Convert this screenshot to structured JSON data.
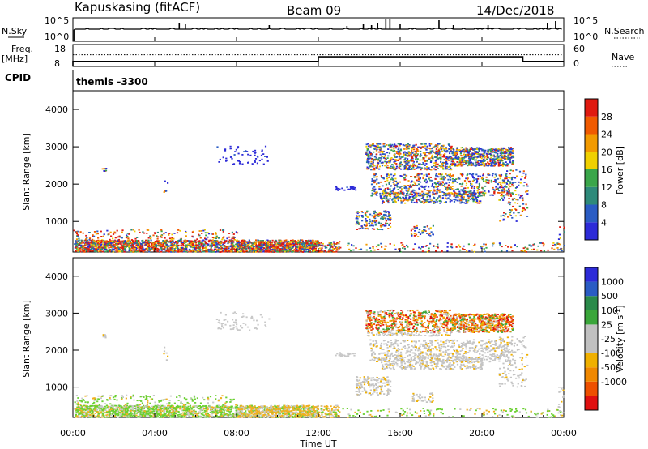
{
  "header": {
    "station": "Kapuskasing (fitACF)",
    "beam": "Beam 09",
    "date": "14/Dec/2018"
  },
  "labels": {
    "nsky": "N.Sky",
    "nsearch": "N.Search",
    "freq": "Freq.",
    "mhz": "[MHz]",
    "nave": "Nave",
    "cpid": "CPID",
    "cpid_value": "themis -3300",
    "xlabel": "Time UT"
  },
  "colors": {
    "power_scale": [
      "#2d2bd8",
      "#2a5cc4",
      "#2e8a7a",
      "#3aa64a",
      "#f0d000",
      "#f29a00",
      "#f05a00",
      "#e01a10"
    ],
    "velocity_scale": [
      "#e01010",
      "#ee5000",
      "#f08800",
      "#f0b000",
      "#c0c0c0",
      "#c0c0c0",
      "#3aa63a",
      "#2a8a4a",
      "#2a5cc4",
      "#2d2bd8"
    ]
  },
  "chart_data": [
    {
      "type": "line",
      "name_left": "N.Sky",
      "name_right": "N.Search",
      "left_ticks": [
        "10^5",
        "10^0"
      ],
      "right_ticks": [
        "10^5",
        "10^0"
      ],
      "xlim": [
        0,
        24
      ]
    },
    {
      "type": "line",
      "left_ticks": [
        "18",
        "8"
      ],
      "right_ticks": [
        "60",
        "0"
      ],
      "ylim_freq": [
        8,
        18
      ],
      "ylim_nave": [
        0,
        60
      ],
      "freq_steps": [
        [
          0,
          10.3
        ],
        [
          12,
          10.3
        ],
        [
          12,
          12.4
        ],
        [
          22,
          12.4
        ],
        [
          22,
          10.3
        ],
        [
          24,
          10.3
        ]
      ],
      "nave_steps": [
        [
          0,
          32
        ],
        [
          24,
          32
        ]
      ]
    },
    {
      "type": "heatmap",
      "title": "Power",
      "unit": "dB",
      "ylabel": "Slant Range [km]",
      "xlim": [
        0,
        24
      ],
      "ylim": [
        180,
        4500
      ],
      "x_ticks": [
        "00:00",
        "04:00",
        "08:00",
        "12:00",
        "16:00",
        "20:00",
        "00:00"
      ],
      "y_ticks": [
        1000,
        2000,
        3000,
        4000
      ],
      "colorbar_range": [
        0,
        32
      ],
      "colorbar_ticks": [
        "4",
        "8",
        "12",
        "16",
        "20",
        "24",
        "28"
      ]
    },
    {
      "type": "heatmap",
      "title": "Velocity",
      "unit": "m s^-1",
      "ylabel": "Slant Range [km]",
      "xlim": [
        0,
        24
      ],
      "ylim": [
        180,
        4500
      ],
      "x_ticks": [
        "00:00",
        "04:00",
        "08:00",
        "12:00",
        "16:00",
        "20:00",
        "00:00"
      ],
      "y_ticks": [
        1000,
        2000,
        3000,
        4000
      ],
      "colorbar_ticks": [
        "1000",
        "500",
        "100",
        "25",
        "-25",
        "-100",
        "-500",
        "-1000"
      ]
    }
  ]
}
